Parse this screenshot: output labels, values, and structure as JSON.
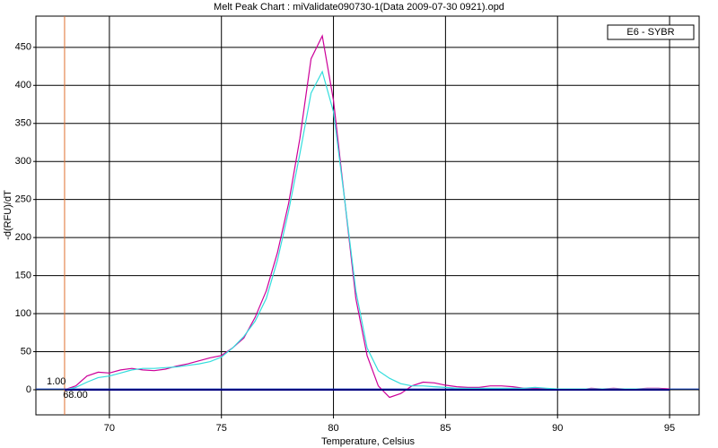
{
  "chart_data": {
    "type": "line",
    "title": "Melt Peak Chart : miValidate090730-1(Data 2009-07-30 0921).opd",
    "x_label": "Temperature, Celsius",
    "y_label": "-d(RFU)/dT",
    "legend": "E6 - SYBR",
    "x": [
      68,
      68.5,
      69,
      69.5,
      70,
      70.5,
      71,
      71.5,
      72,
      72.5,
      73,
      73.5,
      74,
      74.5,
      75,
      75.5,
      76,
      76.5,
      77,
      77.5,
      78,
      78.5,
      79,
      79.5,
      80,
      80.5,
      81,
      81.5,
      82,
      82.5,
      83,
      83.5,
      84,
      84.5,
      85,
      85.5,
      86,
      86.5,
      87,
      87.5,
      88,
      88.5,
      89,
      89.5,
      90,
      90.5,
      91,
      91.5,
      92,
      92.5,
      93,
      93.5,
      94,
      94.5,
      95
    ],
    "series": [
      {
        "color": "#cc0099",
        "values": [
          0,
          5,
          18,
          23,
          22,
          26,
          28,
          26,
          25,
          27,
          31,
          34,
          38,
          42,
          45,
          55,
          68,
          95,
          130,
          180,
          245,
          330,
          435,
          465,
          380,
          250,
          120,
          45,
          5,
          -10,
          -5,
          5,
          10,
          9,
          6,
          4,
          3,
          3,
          5,
          5,
          4,
          2,
          2,
          1,
          0,
          1,
          0,
          2,
          1,
          2,
          1,
          1,
          2,
          2,
          1
        ]
      },
      {
        "color": "#33dddd",
        "values": [
          0,
          3,
          10,
          16,
          18,
          22,
          26,
          28,
          28,
          29,
          30,
          32,
          34,
          37,
          43,
          55,
          70,
          90,
          120,
          170,
          235,
          310,
          390,
          418,
          365,
          250,
          130,
          55,
          25,
          15,
          8,
          5,
          5,
          4,
          3,
          2,
          2,
          2,
          2,
          2,
          2,
          2,
          3,
          2,
          1,
          1,
          1,
          1,
          1,
          1,
          1,
          1,
          1,
          1,
          0
        ]
      },
      {
        "color": "#000080",
        "values": [
          0,
          0,
          0,
          0,
          0,
          0,
          0,
          0,
          0,
          0,
          0,
          0,
          0,
          0,
          0,
          0,
          0,
          0,
          0,
          0,
          0,
          0,
          0,
          0,
          0,
          0,
          0,
          0,
          0,
          0,
          0,
          0,
          0,
          0,
          0,
          0,
          0,
          0,
          0,
          0,
          0,
          0,
          0,
          0,
          0,
          0,
          0,
          0,
          0,
          0,
          0,
          0,
          0,
          0,
          0
        ]
      }
    ],
    "threshold_x": {
      "value": 68,
      "label": "68.00"
    },
    "threshold_y": {
      "value": 1,
      "label": "1.00"
    },
    "xlim": [
      66.72,
      96.32
    ],
    "ylim": [
      -33,
      491
    ],
    "xticks": [
      70,
      75,
      80,
      85,
      90,
      95
    ],
    "yticks": [
      0,
      50,
      100,
      150,
      200,
      250,
      300,
      350,
      400,
      450
    ],
    "grid": true
  }
}
